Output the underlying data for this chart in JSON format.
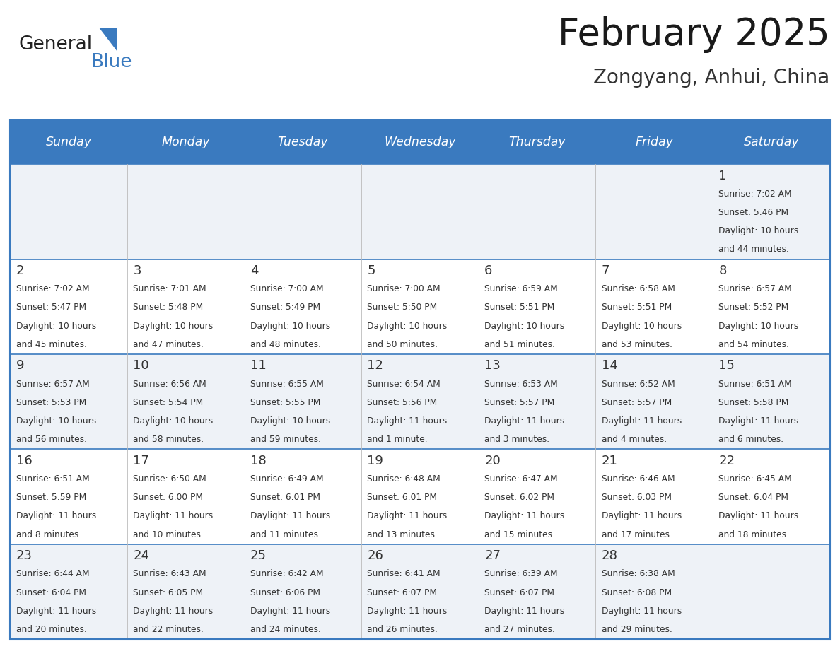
{
  "title": "February 2025",
  "subtitle": "Zongyang, Anhui, China",
  "header_bg": "#3a7abf",
  "header_text_color": "#ffffff",
  "row_bg_odd": "#eef2f7",
  "row_bg_even": "#ffffff",
  "border_color": "#3a7abf",
  "text_color": "#333333",
  "days_of_week": [
    "Sunday",
    "Monday",
    "Tuesday",
    "Wednesday",
    "Thursday",
    "Friday",
    "Saturday"
  ],
  "calendar_data": [
    [
      null,
      null,
      null,
      null,
      null,
      null,
      {
        "day": "1",
        "sunrise": "7:02 AM",
        "sunset": "5:46 PM",
        "daylight_h": "10 hours",
        "daylight_m": "and 44 minutes."
      }
    ],
    [
      {
        "day": "2",
        "sunrise": "7:02 AM",
        "sunset": "5:47 PM",
        "daylight_h": "10 hours",
        "daylight_m": "and 45 minutes."
      },
      {
        "day": "3",
        "sunrise": "7:01 AM",
        "sunset": "5:48 PM",
        "daylight_h": "10 hours",
        "daylight_m": "and 47 minutes."
      },
      {
        "day": "4",
        "sunrise": "7:00 AM",
        "sunset": "5:49 PM",
        "daylight_h": "10 hours",
        "daylight_m": "and 48 minutes."
      },
      {
        "day": "5",
        "sunrise": "7:00 AM",
        "sunset": "5:50 PM",
        "daylight_h": "10 hours",
        "daylight_m": "and 50 minutes."
      },
      {
        "day": "6",
        "sunrise": "6:59 AM",
        "sunset": "5:51 PM",
        "daylight_h": "10 hours",
        "daylight_m": "and 51 minutes."
      },
      {
        "day": "7",
        "sunrise": "6:58 AM",
        "sunset": "5:51 PM",
        "daylight_h": "10 hours",
        "daylight_m": "and 53 minutes."
      },
      {
        "day": "8",
        "sunrise": "6:57 AM",
        "sunset": "5:52 PM",
        "daylight_h": "10 hours",
        "daylight_m": "and 54 minutes."
      }
    ],
    [
      {
        "day": "9",
        "sunrise": "6:57 AM",
        "sunset": "5:53 PM",
        "daylight_h": "10 hours",
        "daylight_m": "and 56 minutes."
      },
      {
        "day": "10",
        "sunrise": "6:56 AM",
        "sunset": "5:54 PM",
        "daylight_h": "10 hours",
        "daylight_m": "and 58 minutes."
      },
      {
        "day": "11",
        "sunrise": "6:55 AM",
        "sunset": "5:55 PM",
        "daylight_h": "10 hours",
        "daylight_m": "and 59 minutes."
      },
      {
        "day": "12",
        "sunrise": "6:54 AM",
        "sunset": "5:56 PM",
        "daylight_h": "11 hours",
        "daylight_m": "and 1 minute."
      },
      {
        "day": "13",
        "sunrise": "6:53 AM",
        "sunset": "5:57 PM",
        "daylight_h": "11 hours",
        "daylight_m": "and 3 minutes."
      },
      {
        "day": "14",
        "sunrise": "6:52 AM",
        "sunset": "5:57 PM",
        "daylight_h": "11 hours",
        "daylight_m": "and 4 minutes."
      },
      {
        "day": "15",
        "sunrise": "6:51 AM",
        "sunset": "5:58 PM",
        "daylight_h": "11 hours",
        "daylight_m": "and 6 minutes."
      }
    ],
    [
      {
        "day": "16",
        "sunrise": "6:51 AM",
        "sunset": "5:59 PM",
        "daylight_h": "11 hours",
        "daylight_m": "and 8 minutes."
      },
      {
        "day": "17",
        "sunrise": "6:50 AM",
        "sunset": "6:00 PM",
        "daylight_h": "11 hours",
        "daylight_m": "and 10 minutes."
      },
      {
        "day": "18",
        "sunrise": "6:49 AM",
        "sunset": "6:01 PM",
        "daylight_h": "11 hours",
        "daylight_m": "and 11 minutes."
      },
      {
        "day": "19",
        "sunrise": "6:48 AM",
        "sunset": "6:01 PM",
        "daylight_h": "11 hours",
        "daylight_m": "and 13 minutes."
      },
      {
        "day": "20",
        "sunrise": "6:47 AM",
        "sunset": "6:02 PM",
        "daylight_h": "11 hours",
        "daylight_m": "and 15 minutes."
      },
      {
        "day": "21",
        "sunrise": "6:46 AM",
        "sunset": "6:03 PM",
        "daylight_h": "11 hours",
        "daylight_m": "and 17 minutes."
      },
      {
        "day": "22",
        "sunrise": "6:45 AM",
        "sunset": "6:04 PM",
        "daylight_h": "11 hours",
        "daylight_m": "and 18 minutes."
      }
    ],
    [
      {
        "day": "23",
        "sunrise": "6:44 AM",
        "sunset": "6:04 PM",
        "daylight_h": "11 hours",
        "daylight_m": "and 20 minutes."
      },
      {
        "day": "24",
        "sunrise": "6:43 AM",
        "sunset": "6:05 PM",
        "daylight_h": "11 hours",
        "daylight_m": "and 22 minutes."
      },
      {
        "day": "25",
        "sunrise": "6:42 AM",
        "sunset": "6:06 PM",
        "daylight_h": "11 hours",
        "daylight_m": "and 24 minutes."
      },
      {
        "day": "26",
        "sunrise": "6:41 AM",
        "sunset": "6:07 PM",
        "daylight_h": "11 hours",
        "daylight_m": "and 26 minutes."
      },
      {
        "day": "27",
        "sunrise": "6:39 AM",
        "sunset": "6:07 PM",
        "daylight_h": "11 hours",
        "daylight_m": "and 27 minutes."
      },
      {
        "day": "28",
        "sunrise": "6:38 AM",
        "sunset": "6:08 PM",
        "daylight_h": "11 hours",
        "daylight_m": "and 29 minutes."
      },
      null
    ]
  ]
}
